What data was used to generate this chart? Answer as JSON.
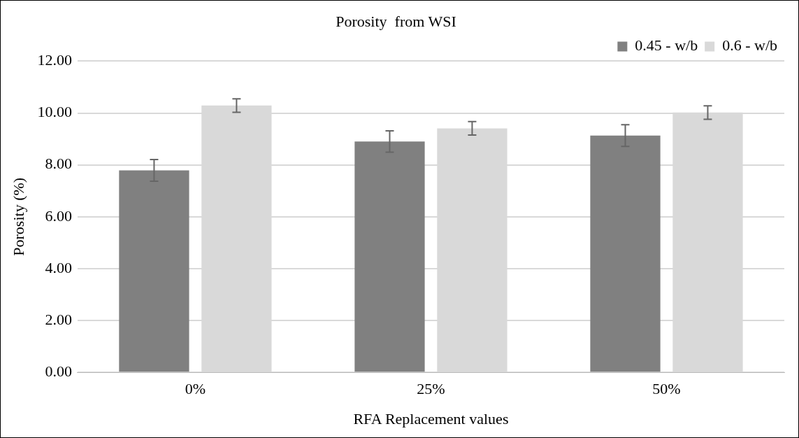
{
  "chart_data": {
    "type": "bar",
    "title": "Porosity  from WSI",
    "xlabel": "RFA Replacement values",
    "ylabel": "Porosity (%)",
    "categories": [
      "0%",
      "25%",
      "50%"
    ],
    "series": [
      {
        "name": "0.45 - w/b",
        "color": "#808080",
        "values": [
          7.79,
          8.9,
          9.13
        ],
        "errors": [
          0.42,
          0.41,
          0.42
        ]
      },
      {
        "name": "0.6 - w/b",
        "color": "#d9d9d9",
        "values": [
          10.29,
          9.41,
          10.02
        ],
        "errors": [
          0.26,
          0.26,
          0.26
        ]
      }
    ],
    "ylim": [
      0,
      12
    ],
    "yticks": [
      {
        "value": 0,
        "label": "0.00"
      },
      {
        "value": 2,
        "label": "2.00"
      },
      {
        "value": 4,
        "label": "4.00"
      },
      {
        "value": 6,
        "label": "6.00"
      },
      {
        "value": 8,
        "label": "8.00"
      },
      {
        "value": 10,
        "label": "10.00"
      },
      {
        "value": 12,
        "label": "12.00"
      }
    ],
    "grid": "y",
    "legend": "top right"
  }
}
